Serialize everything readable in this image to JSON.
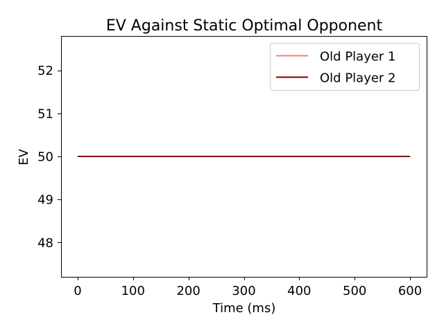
{
  "chart_data": {
    "type": "line",
    "title": "EV Against Static Optimal Opponent",
    "xlabel": "Time (ms)",
    "ylabel": "EV",
    "xlim": [
      -30,
      630
    ],
    "ylim": [
      47.2,
      52.8
    ],
    "xticks": [
      0,
      100,
      200,
      300,
      400,
      500,
      600
    ],
    "yticks": [
      48,
      49,
      50,
      51,
      52
    ],
    "xtick_labels": [
      "0",
      "100",
      "200",
      "300",
      "400",
      "500",
      "600"
    ],
    "ytick_labels": [
      "48",
      "49",
      "50",
      "51",
      "52"
    ],
    "grid": false,
    "legend_position": "top-right",
    "series": [
      {
        "name": "Old Player 1",
        "color": "#f08080",
        "x": [
          0,
          100,
          200,
          300,
          400,
          500,
          600
        ],
        "y": [
          50,
          50,
          50,
          50,
          50,
          50,
          50
        ]
      },
      {
        "name": "Old Player 2",
        "color": "#800000",
        "x": [
          0,
          100,
          200,
          300,
          400,
          500,
          600
        ],
        "y": [
          50,
          50,
          50,
          50,
          50,
          50,
          50
        ]
      }
    ]
  }
}
